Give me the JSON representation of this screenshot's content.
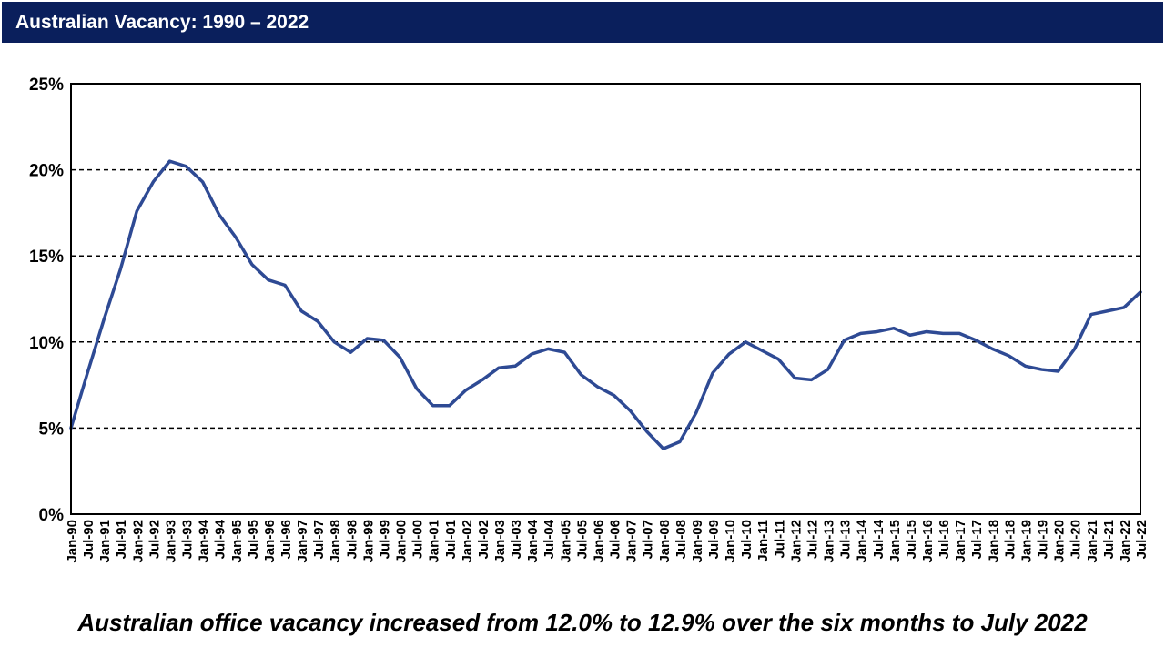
{
  "header": {
    "title": "Australian Vacancy: 1990 – 2022"
  },
  "caption": "Australian office vacancy increased from 12.0% to 12.9% over the six months to July 2022",
  "colors": {
    "header_bg": "#0a1f5c",
    "line": "#2e4a94",
    "grid": "#000000"
  },
  "chart_data": {
    "type": "line",
    "title": "Australian Vacancy: 1990 – 2022",
    "xlabel": "",
    "ylabel": "",
    "ylim": [
      0,
      25
    ],
    "y_ticks": [
      0,
      5,
      10,
      15,
      20,
      25
    ],
    "y_tick_labels": [
      "0%",
      "5%",
      "10%",
      "15%",
      "20%",
      "25%"
    ],
    "grid": "horizontal dashed",
    "legend": "none",
    "categories": [
      "Jan-90",
      "Jul-90",
      "Jan-91",
      "Jul-91",
      "Jan-92",
      "Jul-92",
      "Jan-93",
      "Jul-93",
      "Jan-94",
      "Jul-94",
      "Jan-95",
      "Jul-95",
      "Jan-96",
      "Jul-96",
      "Jan-97",
      "Jul-97",
      "Jan-98",
      "Jul-98",
      "Jan-99",
      "Jul-99",
      "Jan-00",
      "Jul-00",
      "Jan-01",
      "Jul-01",
      "Jan-02",
      "Jul-02",
      "Jan-03",
      "Jul-03",
      "Jan-04",
      "Jul-04",
      "Jan-05",
      "Jul-05",
      "Jan-06",
      "Jul-06",
      "Jan-07",
      "Jul-07",
      "Jan-08",
      "Jul-08",
      "Jan-09",
      "Jul-09",
      "Jan-10",
      "Jul-10",
      "Jan-11",
      "Jul-11",
      "Jan-12",
      "Jul-12",
      "Jan-13",
      "Jul-13",
      "Jan-14",
      "Jul-14",
      "Jan-15",
      "Jul-15",
      "Jan-16",
      "Jul-16",
      "Jan-17",
      "Jul-17",
      "Jan-18",
      "Jul-18",
      "Jan-19",
      "Jul-19",
      "Jan-20",
      "Jul-20",
      "Jan-21",
      "Jul-21",
      "Jan-22",
      "Jul-22"
    ],
    "values": [
      5.0,
      8.2,
      11.3,
      14.2,
      17.6,
      19.3,
      20.5,
      20.2,
      19.3,
      17.4,
      16.1,
      14.5,
      13.6,
      13.3,
      11.8,
      11.2,
      10.0,
      9.4,
      10.2,
      10.1,
      9.1,
      7.3,
      6.3,
      6.3,
      7.2,
      7.8,
      8.5,
      8.6,
      9.3,
      9.6,
      9.4,
      8.1,
      7.4,
      6.9,
      6.0,
      4.8,
      3.8,
      4.2,
      5.9,
      8.2,
      9.3,
      10.0,
      9.5,
      9.0,
      7.9,
      7.8,
      8.4,
      10.1,
      10.5,
      10.6,
      10.8,
      10.4,
      10.6,
      10.5,
      10.5,
      10.1,
      9.6,
      9.2,
      8.6,
      8.4,
      8.3,
      9.6,
      11.6,
      11.8,
      12.0,
      12.9
    ]
  }
}
